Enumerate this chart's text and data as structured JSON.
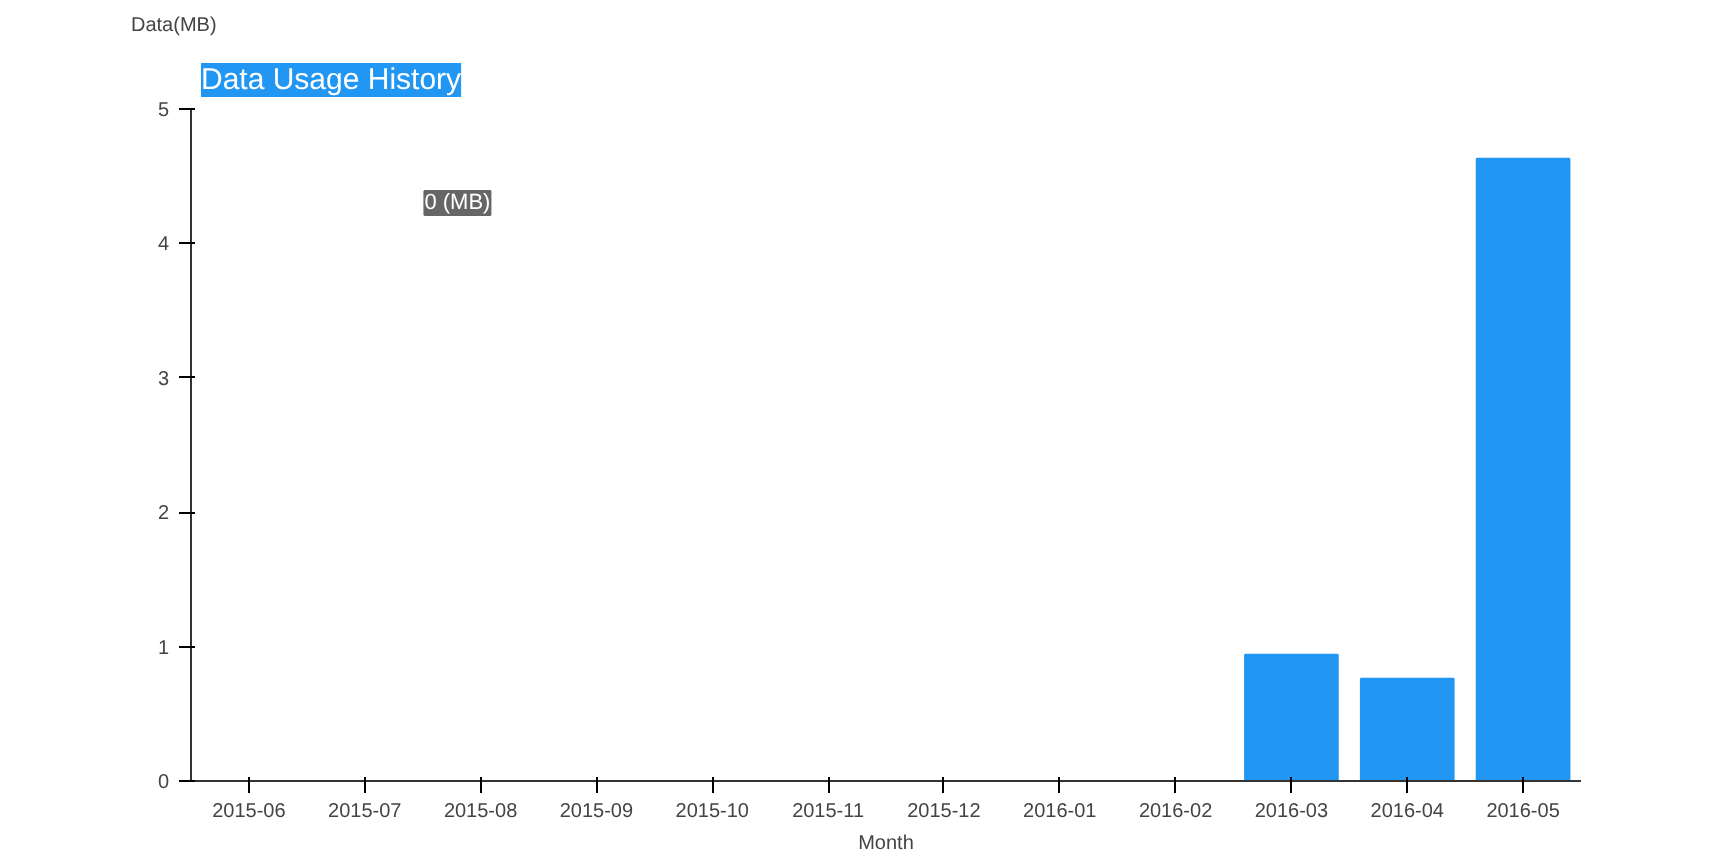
{
  "chart_data": {
    "type": "bar",
    "title": "Data Usage History",
    "xlabel": "Month",
    "ylabel": "Data(MB)",
    "categories": [
      "2015-06",
      "2015-07",
      "2015-08",
      "2015-09",
      "2015-10",
      "2015-11",
      "2015-12",
      "2016-01",
      "2016-02",
      "2016-03",
      "2016-04",
      "2016-05"
    ],
    "values": [
      0,
      0,
      0,
      0,
      0,
      0,
      0,
      0,
      0,
      0.94,
      0.76,
      4.63
    ],
    "color": "#2196f3",
    "ylim": [
      0,
      5
    ],
    "yticks": [
      0,
      1,
      2,
      3,
      4,
      5
    ],
    "grid": false,
    "annotations": [
      "0 (MB)"
    ]
  }
}
